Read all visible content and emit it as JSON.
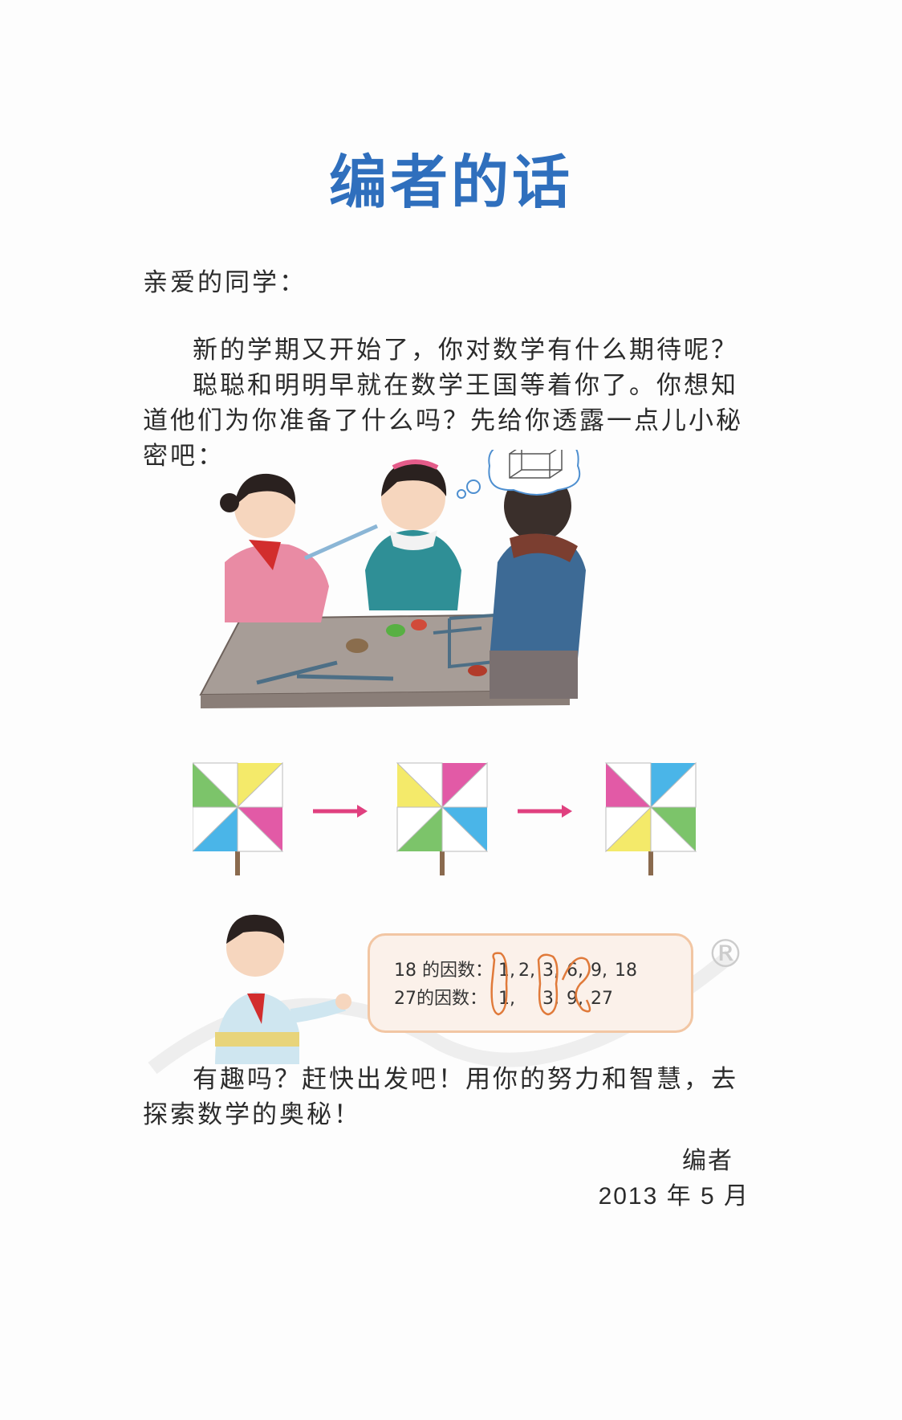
{
  "title": "编者的话",
  "greeting": "亲爱的同学：",
  "paragraphs": [
    "新的学期又开始了，你对数学有什么期待呢？",
    "聪聪和明明早就在数学王国等着你了。你想知道他们为你准备了什么吗？先给你透露一点儿小秘密吧："
  ],
  "factors": {
    "line1_label": "18 的因数：",
    "line1_values": [
      "1,",
      "2,",
      "3,",
      "6,",
      "9,",
      "18"
    ],
    "line2_label": "27的因数：",
    "line2_values": [
      "1,",
      "3,",
      "9,",
      "27"
    ]
  },
  "closing": "有趣吗？赶快出发吧！用你的努力和智慧，去探索数学的奥秘！",
  "signature": {
    "author": "编者",
    "date": "2013 年 5 月"
  },
  "registered_mark": "®"
}
